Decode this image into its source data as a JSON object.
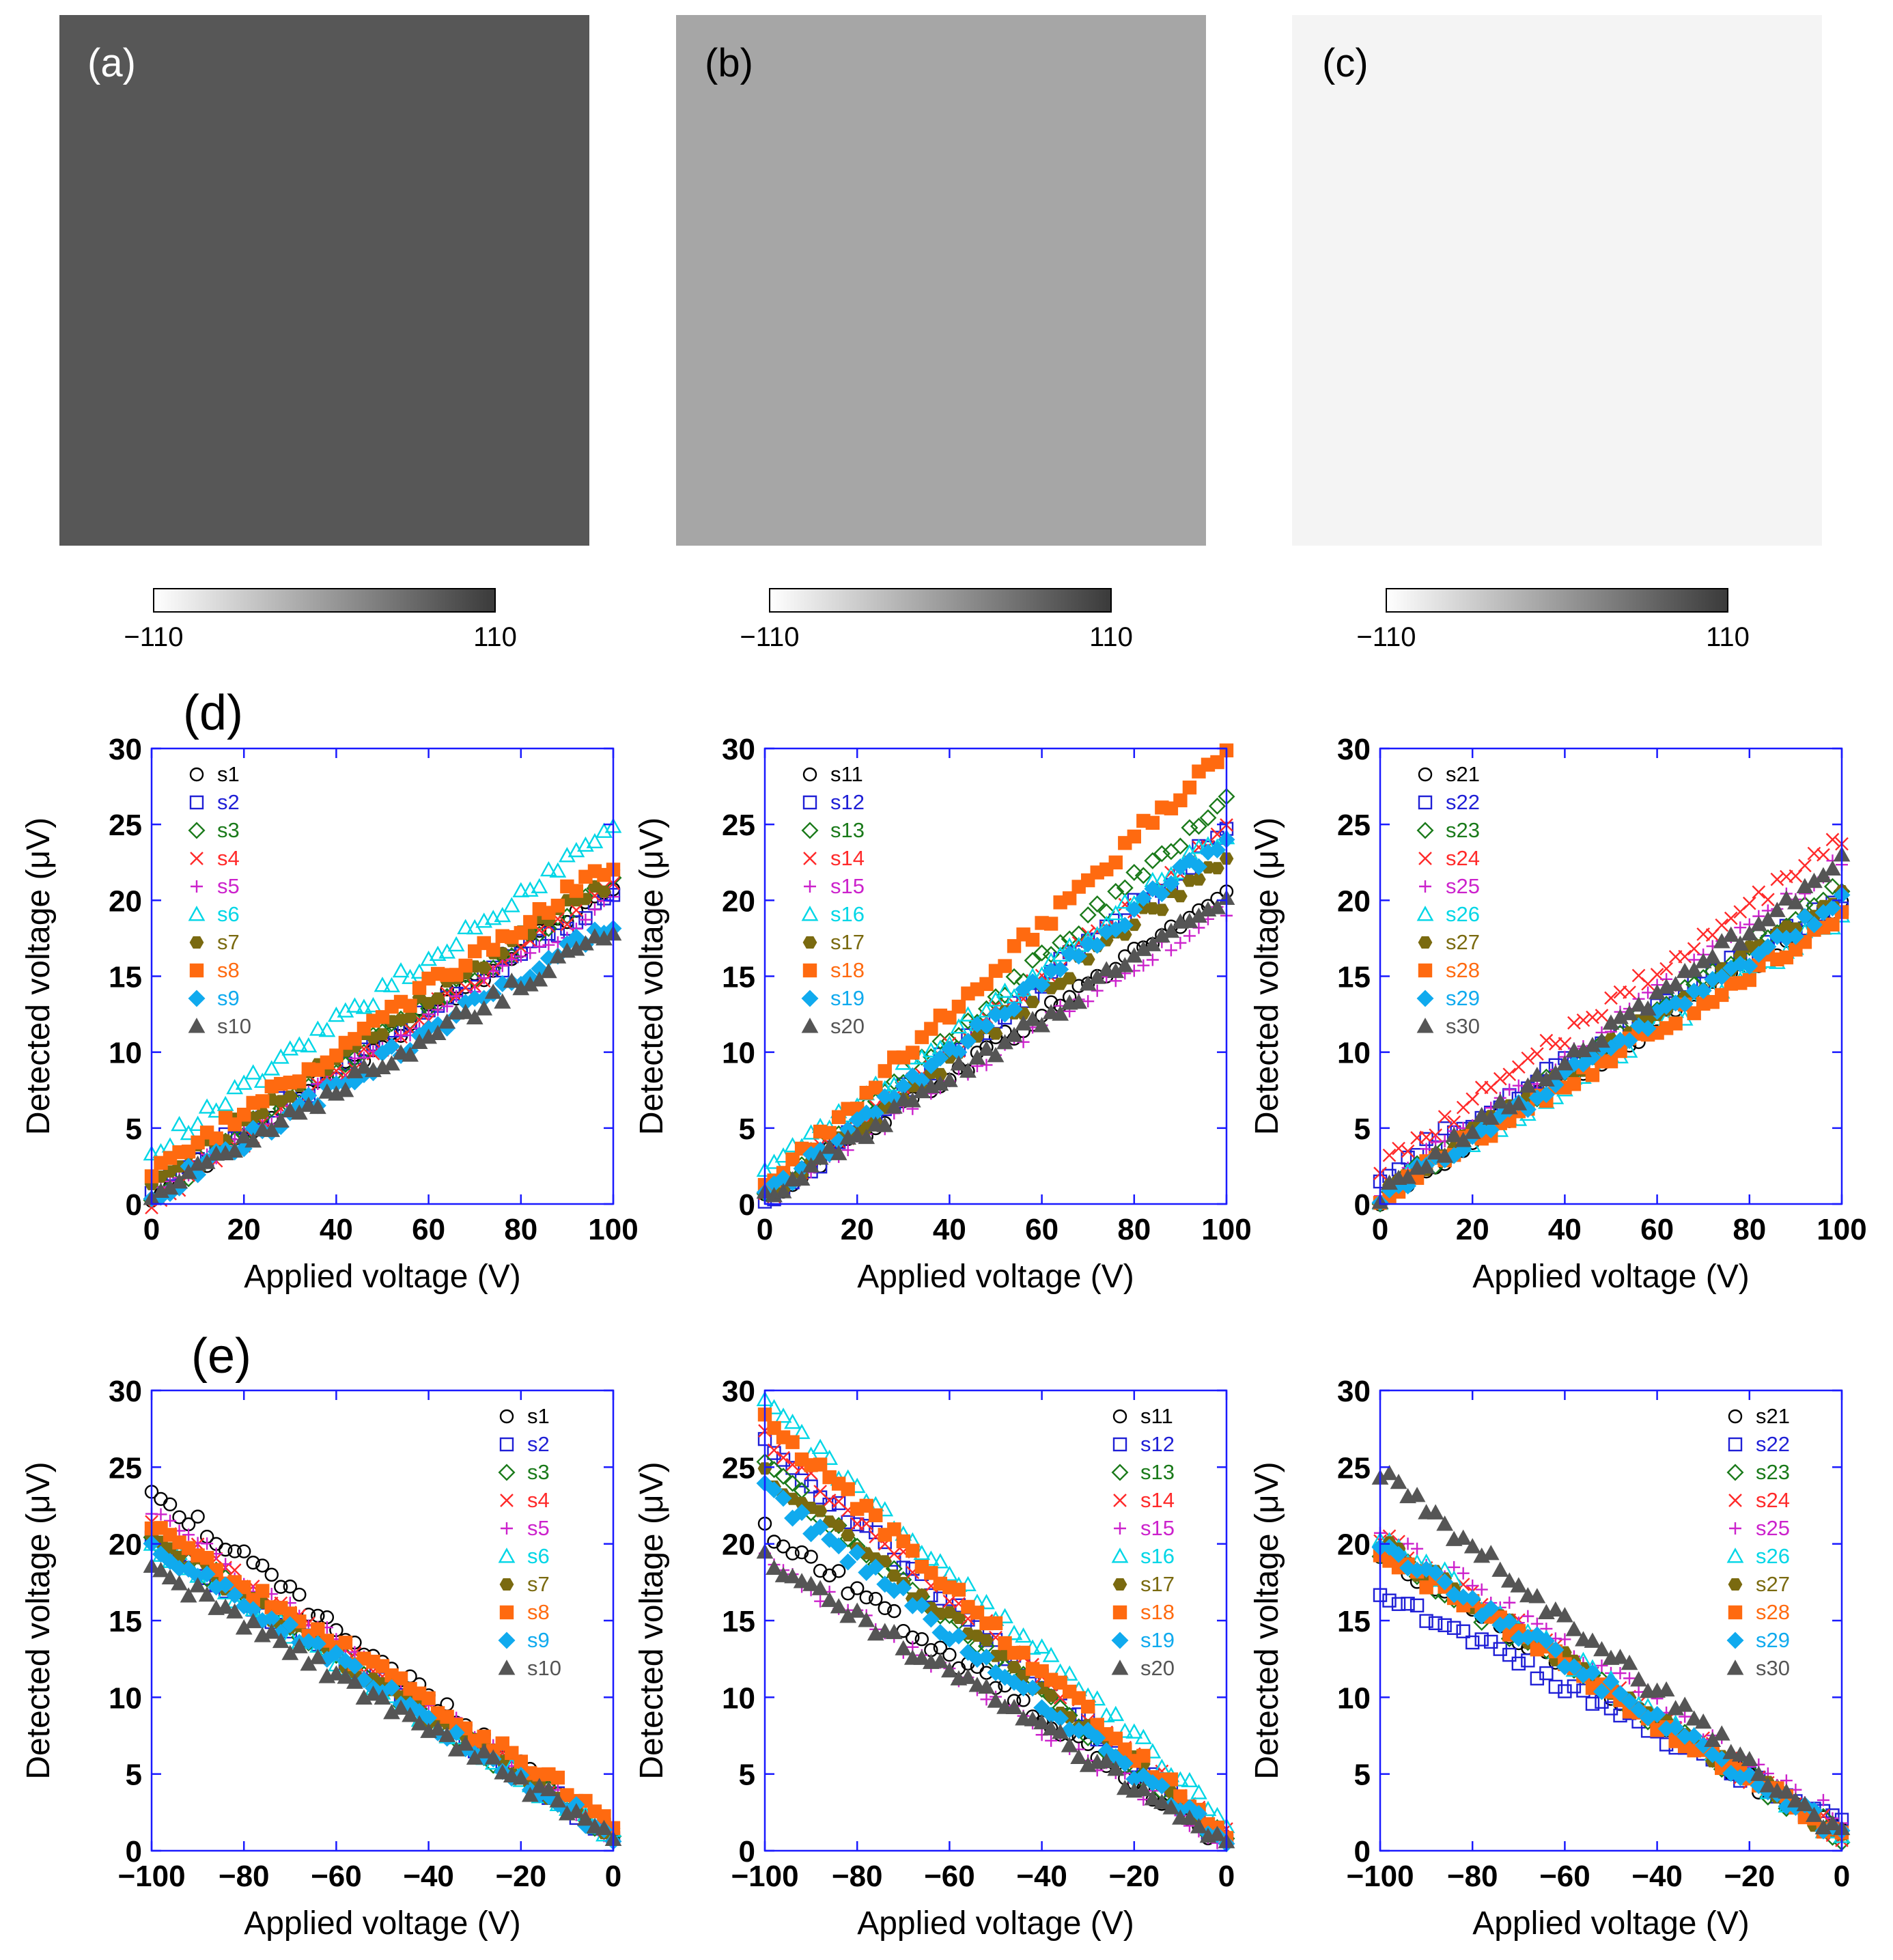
{
  "panel_labels": {
    "a": "(a)",
    "b": "(b)",
    "c": "(c)",
    "d": "(d)",
    "e": "(e)"
  },
  "colorbar": {
    "min_label": "−110",
    "max_label": "110"
  },
  "image_panels": [
    {
      "id": "a",
      "shade": "#575757"
    },
    {
      "id": "b",
      "shade": "#a6a6a6"
    },
    {
      "id": "c",
      "shade": "#f4f4f4"
    }
  ],
  "series_styles": [
    {
      "marker": "circle",
      "color": "#000000",
      "fill": "none"
    },
    {
      "marker": "square",
      "color": "#1f1fd6",
      "fill": "none"
    },
    {
      "marker": "diamond",
      "color": "#1a7a1a",
      "fill": "none"
    },
    {
      "marker": "x",
      "color": "#ff2a2a",
      "fill": "none"
    },
    {
      "marker": "plus",
      "color": "#cc22cc",
      "fill": "none"
    },
    {
      "marker": "triangle",
      "color": "#00d6e6",
      "fill": "none"
    },
    {
      "marker": "hexagon",
      "color": "#7a6a10",
      "fill": "#7a6a10"
    },
    {
      "marker": "square",
      "color": "#ff6a10",
      "fill": "#ff6a10"
    },
    {
      "marker": "diamond",
      "color": "#10aaee",
      "fill": "#10aaee"
    },
    {
      "marker": "triangle",
      "color": "#555555",
      "fill": "#555555"
    }
  ],
  "chart_data": [
    {
      "type": "scatter",
      "row": "d",
      "xlabel": "Applied voltage (V)",
      "ylabel": "Detected voltage (μV)",
      "xlim": [
        0,
        100
      ],
      "ylim": [
        0,
        30
      ],
      "xticks": [
        "0",
        "20",
        "40",
        "60",
        "80",
        "100"
      ],
      "yticks": [
        "0",
        "5",
        "10",
        "15",
        "20",
        "25",
        "30"
      ],
      "legend_position": "top-left",
      "series": [
        {
          "name": "s1",
          "start": 0.5,
          "end": 21
        },
        {
          "name": "s2",
          "start": 1.0,
          "end": 20.5
        },
        {
          "name": "s3",
          "start": 0.5,
          "end": 21.5
        },
        {
          "name": "s4",
          "start": 0.0,
          "end": 21
        },
        {
          "name": "s5",
          "start": 0.5,
          "end": 20
        },
        {
          "name": "s6",
          "start": 3.5,
          "end": 24.5
        },
        {
          "name": "s7",
          "start": 1.5,
          "end": 21.5
        },
        {
          "name": "s8",
          "start": 2.0,
          "end": 22.5
        },
        {
          "name": "s9",
          "start": 0.5,
          "end": 18.5
        },
        {
          "name": "s10",
          "start": 0.5,
          "end": 18
        }
      ]
    },
    {
      "type": "scatter",
      "row": "d",
      "xlabel": "Applied voltage (V)",
      "ylabel": "Detected voltage (μV)",
      "xlim": [
        0,
        100
      ],
      "ylim": [
        0,
        30
      ],
      "xticks": [
        "0",
        "20",
        "40",
        "60",
        "80",
        "100"
      ],
      "yticks": [
        "0",
        "5",
        "10",
        "15",
        "20",
        "25",
        "30"
      ],
      "legend_position": "top-left",
      "series": [
        {
          "name": "s11",
          "start": 0.5,
          "end": 20.5
        },
        {
          "name": "s12",
          "start": 0.0,
          "end": 24.5
        },
        {
          "name": "s13",
          "start": 0.5,
          "end": 26.5
        },
        {
          "name": "s14",
          "start": 0.5,
          "end": 24.5
        },
        {
          "name": "s15",
          "start": 0.5,
          "end": 19.5
        },
        {
          "name": "s16",
          "start": 2.0,
          "end": 24.5
        },
        {
          "name": "s17",
          "start": 0.5,
          "end": 23
        },
        {
          "name": "s18",
          "start": 1.0,
          "end": 30
        },
        {
          "name": "s19",
          "start": 0.5,
          "end": 24
        },
        {
          "name": "s20",
          "start": 0.5,
          "end": 20
        }
      ]
    },
    {
      "type": "scatter",
      "row": "d",
      "xlabel": "Applied voltage (V)",
      "ylabel": "Detected voltage (μV)",
      "xlim": [
        0,
        100
      ],
      "ylim": [
        0,
        30
      ],
      "xticks": [
        "0",
        "20",
        "40",
        "60",
        "80",
        "100"
      ],
      "yticks": [
        "0",
        "5",
        "10",
        "15",
        "20",
        "25",
        "30"
      ],
      "legend_position": "top-left",
      "series": [
        {
          "name": "s21",
          "start": 0.5,
          "end": 19.5
        },
        {
          "name": "s22",
          "start": 2.0,
          "end": 20
        },
        {
          "name": "s23",
          "start": 0.5,
          "end": 21
        },
        {
          "name": "s24",
          "start": 2.5,
          "end": 24
        },
        {
          "name": "s25",
          "start": 1.0,
          "end": 22.5
        },
        {
          "name": "s26",
          "start": 0.5,
          "end": 19
        },
        {
          "name": "s27",
          "start": 0.5,
          "end": 20.5
        },
        {
          "name": "s28",
          "start": 0.5,
          "end": 19
        },
        {
          "name": "s29",
          "start": 0.5,
          "end": 20
        },
        {
          "name": "s30",
          "start": 0.5,
          "end": 22.5
        }
      ]
    },
    {
      "type": "scatter",
      "row": "e",
      "xlabel": "Applied voltage (V)",
      "ylabel": "Detected voltage (μV)",
      "xlim": [
        -100,
        0
      ],
      "ylim": [
        0,
        30
      ],
      "xticks": [
        "−100",
        "−80",
        "−60",
        "−40",
        "−20",
        "0"
      ],
      "yticks": [
        "0",
        "5",
        "10",
        "15",
        "20",
        "25",
        "30"
      ],
      "legend_position": "top-right",
      "series": [
        {
          "name": "s1",
          "start": 23.5,
          "end": 1
        },
        {
          "name": "s2",
          "start": 20.5,
          "end": 1
        },
        {
          "name": "s3",
          "start": 20.5,
          "end": 1
        },
        {
          "name": "s4",
          "start": 21.5,
          "end": 1
        },
        {
          "name": "s5",
          "start": 22,
          "end": 1
        },
        {
          "name": "s6",
          "start": 20,
          "end": 1
        },
        {
          "name": "s7",
          "start": 20.5,
          "end": 1
        },
        {
          "name": "s8",
          "start": 21,
          "end": 2
        },
        {
          "name": "s9",
          "start": 20,
          "end": 1
        },
        {
          "name": "s10",
          "start": 18.5,
          "end": 1
        }
      ]
    },
    {
      "type": "scatter",
      "row": "e",
      "xlabel": "Applied voltage (V)",
      "ylabel": "Detected voltage (μV)",
      "xlim": [
        -100,
        0
      ],
      "ylim": [
        0,
        30
      ],
      "xticks": [
        "−100",
        "−80",
        "−60",
        "−40",
        "−20",
        "0"
      ],
      "yticks": [
        "0",
        "5",
        "10",
        "15",
        "20",
        "25",
        "30"
      ],
      "legend_position": "top-right",
      "series": [
        {
          "name": "s11",
          "start": 21,
          "end": 0.5
        },
        {
          "name": "s12",
          "start": 26.5,
          "end": 0.5
        },
        {
          "name": "s13",
          "start": 25,
          "end": 0.5
        },
        {
          "name": "s14",
          "start": 27,
          "end": 1
        },
        {
          "name": "s15",
          "start": 19,
          "end": 0.5
        },
        {
          "name": "s16",
          "start": 29,
          "end": 2
        },
        {
          "name": "s17",
          "start": 24.5,
          "end": 1
        },
        {
          "name": "s18",
          "start": 28,
          "end": 1
        },
        {
          "name": "s19",
          "start": 23.5,
          "end": 0.5
        },
        {
          "name": "s20",
          "start": 19,
          "end": 0.5
        }
      ]
    },
    {
      "type": "scatter",
      "row": "e",
      "xlabel": "Applied voltage (V)",
      "ylabel": "Detected voltage (μV)",
      "xlim": [
        -100,
        0
      ],
      "ylim": [
        0,
        30
      ],
      "xticks": [
        "−100",
        "−80",
        "−60",
        "−40",
        "−20",
        "0"
      ],
      "yticks": [
        "0",
        "5",
        "10",
        "15",
        "20",
        "25",
        "30"
      ],
      "legend_position": "top-right",
      "series": [
        {
          "name": "s21",
          "start": 19.5,
          "end": 1
        },
        {
          "name": "s22",
          "start": 17,
          "end": 1.5
        },
        {
          "name": "s23",
          "start": 19.5,
          "end": 1
        },
        {
          "name": "s24",
          "start": 20.5,
          "end": 1
        },
        {
          "name": "s25",
          "start": 21,
          "end": 2
        },
        {
          "name": "s26",
          "start": 20.5,
          "end": 1
        },
        {
          "name": "s27",
          "start": 20,
          "end": 1
        },
        {
          "name": "s28",
          "start": 19.5,
          "end": 1
        },
        {
          "name": "s29",
          "start": 20,
          "end": 1
        },
        {
          "name": "s30",
          "start": 24.5,
          "end": 1
        }
      ]
    }
  ]
}
